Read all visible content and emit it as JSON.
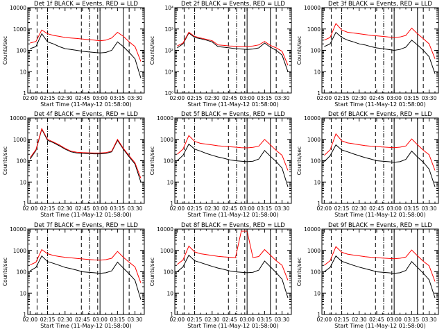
{
  "chart_data": {
    "type": "line",
    "title": "",
    "xlabel": "Start Time (11-May-12 01:58:00)",
    "ylabel": "Counts/sec",
    "x_tick_labels": [
      "02:00",
      "02:15",
      "02:30",
      "02:45",
      "03:00",
      "03:15",
      "03:30"
    ],
    "y_tick_labels_standard": [
      "1",
      "10",
      "100",
      "1000",
      "10000"
    ],
    "y_tick_labels_det2": [
      "10⁰",
      "10¹",
      "10²",
      "10³",
      "10⁴"
    ],
    "xlim": [
      "01:58:00",
      "03:38:00"
    ],
    "ylim": [
      1,
      10000
    ],
    "y_scale": "log",
    "grid": false,
    "legend": "none",
    "colors": {
      "events": "#000000",
      "lld": "#ff0000"
    },
    "vertical_markers": {
      "dashed_long": [
        "02:06:00",
        "02:44:00",
        "02:58:00",
        "03:25:00"
      ],
      "dash_dot": [
        "02:15:00",
        "02:51:00"
      ],
      "solid": [
        "03:00:00",
        "03:20:00"
      ]
    },
    "panels": [
      {
        "title": "Det 1f BLACK = Events, RED = LLD",
        "label_style": "standard",
        "x": [
          "02:00",
          "02:05",
          "02:10",
          "02:15",
          "02:20",
          "02:25",
          "02:30",
          "02:35",
          "02:40",
          "02:45",
          "02:50",
          "02:55",
          "03:00",
          "03:05",
          "03:10",
          "03:15",
          "03:20",
          "03:25",
          "03:30",
          "03:35"
        ],
        "events": [
          120,
          150,
          600,
          250,
          200,
          150,
          120,
          110,
          100,
          90,
          85,
          80,
          75,
          80,
          100,
          250,
          150,
          80,
          40,
          5
        ],
        "lld": [
          220,
          260,
          900,
          600,
          500,
          450,
          400,
          380,
          360,
          340,
          320,
          300,
          280,
          300,
          380,
          700,
          450,
          250,
          150,
          30
        ]
      },
      {
        "title": "Det 2f BLACK = Events, RED = LLD",
        "label_style": "det2",
        "x": [
          "02:00",
          "02:05",
          "02:10",
          "02:15",
          "02:20",
          "02:25",
          "02:30",
          "02:35",
          "02:40",
          "02:45",
          "02:50",
          "02:55",
          "03:00",
          "03:05",
          "03:10",
          "03:15",
          "03:20",
          "03:25",
          "03:30",
          "03:35"
        ],
        "events": [
          130,
          200,
          650,
          400,
          350,
          300,
          250,
          150,
          140,
          130,
          120,
          115,
          110,
          115,
          130,
          220,
          140,
          100,
          60,
          10
        ],
        "lld": [
          160,
          220,
          700,
          450,
          380,
          330,
          280,
          180,
          170,
          160,
          155,
          150,
          150,
          160,
          180,
          260,
          170,
          130,
          90,
          20
        ]
      },
      {
        "title": "Det 3f BLACK = Events, RED = LLD",
        "label_style": "standard",
        "x": [
          "02:00",
          "02:05",
          "02:10",
          "02:15",
          "02:20",
          "02:25",
          "02:30",
          "02:35",
          "02:40",
          "02:45",
          "02:50",
          "02:55",
          "03:00",
          "03:05",
          "03:10",
          "03:15",
          "03:20",
          "03:25",
          "03:30",
          "03:35"
        ],
        "events": [
          150,
          200,
          700,
          400,
          300,
          250,
          200,
          180,
          150,
          130,
          120,
          110,
          100,
          110,
          140,
          300,
          180,
          100,
          50,
          8
        ],
        "lld": [
          300,
          400,
          1800,
          900,
          700,
          650,
          600,
          550,
          500,
          480,
          450,
          420,
          400,
          420,
          500,
          1100,
          600,
          350,
          200,
          40
        ]
      },
      {
        "title": "Det 4f BLACK = Events, RED = LLD",
        "label_style": "standard",
        "x": [
          "02:00",
          "02:05",
          "02:10",
          "02:15",
          "02:20",
          "02:25",
          "02:30",
          "02:35",
          "02:40",
          "02:45",
          "02:50",
          "02:55",
          "03:00",
          "03:05",
          "03:10",
          "03:15",
          "03:20",
          "03:25",
          "03:30",
          "03:35"
        ],
        "events": [
          120,
          300,
          3000,
          900,
          700,
          500,
          350,
          260,
          230,
          220,
          215,
          210,
          210,
          220,
          260,
          900,
          350,
          150,
          70,
          10
        ],
        "lld": [
          140,
          330,
          3200,
          1000,
          750,
          550,
          380,
          280,
          250,
          240,
          235,
          230,
          230,
          240,
          280,
          1000,
          380,
          170,
          80,
          15
        ]
      },
      {
        "title": "Det 5f BLACK = Events, RED = LLD",
        "label_style": "standard",
        "x": [
          "02:00",
          "02:05",
          "02:10",
          "02:15",
          "02:20",
          "02:25",
          "02:30",
          "02:35",
          "02:40",
          "02:45",
          "02:50",
          "02:55",
          "03:00",
          "03:05",
          "03:10",
          "03:15",
          "03:20",
          "03:25",
          "03:30",
          "03:35"
        ],
        "events": [
          100,
          180,
          600,
          350,
          280,
          220,
          180,
          150,
          130,
          110,
          100,
          95,
          90,
          95,
          120,
          300,
          160,
          90,
          45,
          6
        ],
        "lld": [
          200,
          350,
          1500,
          800,
          650,
          600,
          550,
          500,
          470,
          450,
          430,
          410,
          400,
          420,
          480,
          1000,
          550,
          300,
          180,
          35
        ]
      },
      {
        "title": "Det 6f BLACK = Events, RED = LLD",
        "label_style": "standard",
        "x": [
          "02:00",
          "02:05",
          "02:10",
          "02:15",
          "02:20",
          "02:25",
          "02:30",
          "02:35",
          "02:40",
          "02:45",
          "02:50",
          "02:55",
          "03:00",
          "03:05",
          "03:10",
          "03:15",
          "03:20",
          "03:25",
          "03:30",
          "03:35"
        ],
        "events": [
          90,
          170,
          550,
          320,
          260,
          210,
          170,
          140,
          120,
          100,
          95,
          90,
          85,
          90,
          115,
          280,
          150,
          85,
          40,
          6
        ],
        "lld": [
          180,
          320,
          1800,
          850,
          680,
          620,
          560,
          510,
          480,
          460,
          440,
          420,
          410,
          430,
          490,
          1050,
          560,
          310,
          190,
          35
        ]
      },
      {
        "title": "Det 7f BLACK = Events, RED = LLD",
        "label_style": "standard",
        "x": [
          "02:00",
          "02:05",
          "02:10",
          "02:15",
          "02:20",
          "02:25",
          "02:30",
          "02:35",
          "02:40",
          "02:45",
          "02:50",
          "02:55",
          "03:00",
          "03:05",
          "03:10",
          "03:15",
          "03:20",
          "03:25",
          "03:30",
          "03:35"
        ],
        "events": [
          110,
          160,
          550,
          300,
          250,
          200,
          160,
          140,
          120,
          100,
          95,
          90,
          85,
          90,
          110,
          280,
          150,
          80,
          40,
          5
        ],
        "lld": [
          210,
          280,
          1100,
          700,
          580,
          520,
          480,
          450,
          420,
          400,
          380,
          360,
          350,
          370,
          430,
          900,
          480,
          280,
          170,
          30
        ]
      },
      {
        "title": "Det 8f BLACK = Events, RED = LLD",
        "label_style": "standard",
        "x": [
          "02:00",
          "02:05",
          "02:10",
          "02:15",
          "02:20",
          "02:25",
          "02:30",
          "02:35",
          "02:40",
          "02:45",
          "02:50",
          "02:55",
          "03:00",
          "03:05",
          "03:10",
          "03:15",
          "03:20",
          "03:25",
          "03:30",
          "03:35"
        ],
        "events": [
          100,
          170,
          600,
          330,
          270,
          220,
          180,
          150,
          130,
          110,
          100,
          95,
          90,
          95,
          120,
          320,
          170,
          90,
          45,
          6
        ],
        "lld": [
          220,
          360,
          1600,
          850,
          700,
          640,
          580,
          530,
          500,
          480,
          460,
          8000,
          8000,
          460,
          520,
          1100,
          600,
          330,
          200,
          40
        ]
      },
      {
        "title": "Det 9f BLACK = Events, RED = LLD",
        "label_style": "standard",
        "x": [
          "02:00",
          "02:05",
          "02:10",
          "02:15",
          "02:20",
          "02:25",
          "02:30",
          "02:35",
          "02:40",
          "02:45",
          "02:50",
          "02:55",
          "03:00",
          "03:05",
          "03:10",
          "03:15",
          "03:20",
          "03:25",
          "03:30",
          "03:35"
        ],
        "events": [
          100,
          160,
          550,
          310,
          250,
          200,
          165,
          140,
          120,
          100,
          95,
          90,
          85,
          90,
          115,
          300,
          160,
          85,
          42,
          6
        ],
        "lld": [
          200,
          330,
          1500,
          820,
          670,
          610,
          560,
          510,
          480,
          460,
          440,
          420,
          410,
          430,
          490,
          1050,
          560,
          310,
          190,
          35
        ]
      }
    ]
  }
}
